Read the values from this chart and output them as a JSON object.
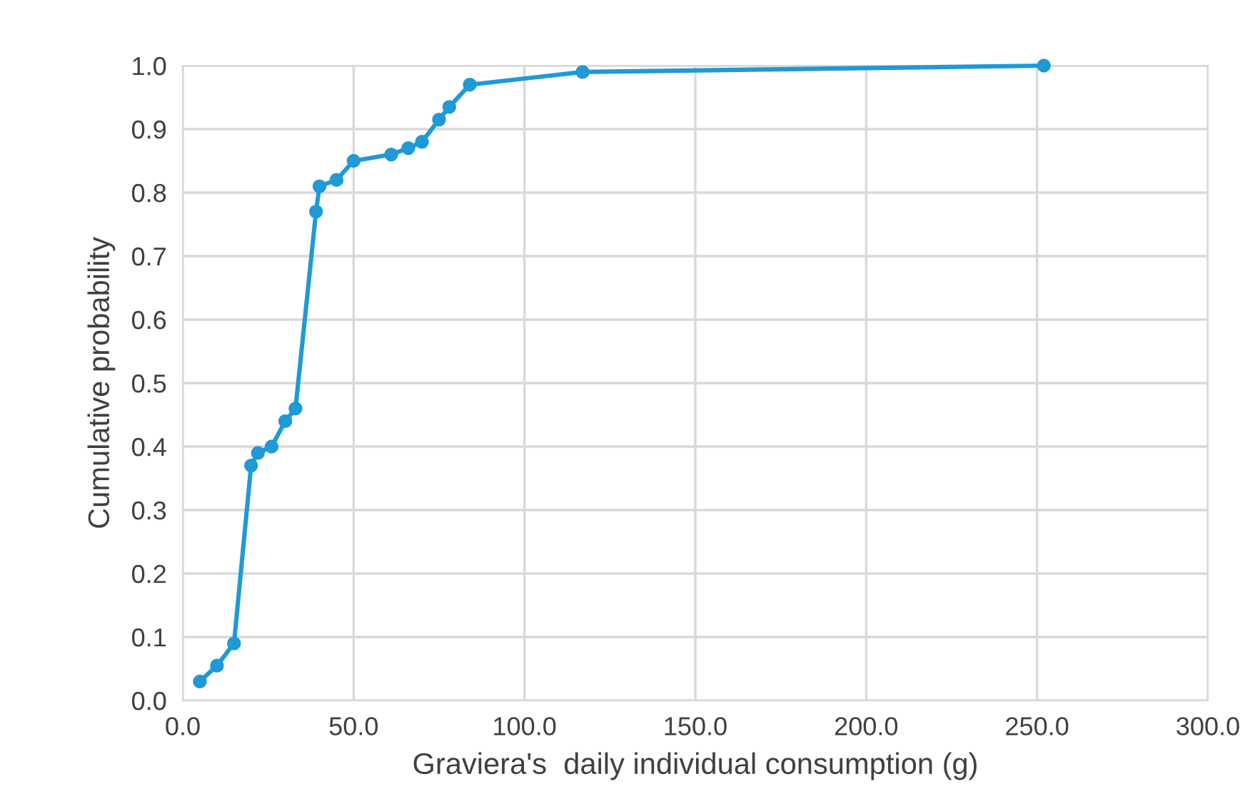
{
  "chart_data": {
    "type": "line",
    "xlabel": "Graviera's  daily individual consumption (g)",
    "ylabel": "Cumulative probability",
    "x": [
      5,
      10,
      15,
      20,
      22,
      26,
      30,
      33,
      39,
      40,
      45,
      50,
      61,
      66,
      70,
      75,
      78,
      84,
      117,
      252
    ],
    "series": [
      {
        "color": "#1f9ad6",
        "values": [
          0.03,
          0.055,
          0.09,
          0.37,
          0.39,
          0.4,
          0.44,
          0.46,
          0.77,
          0.81,
          0.82,
          0.85,
          0.86,
          0.87,
          0.88,
          0.915,
          0.935,
          0.97,
          0.99,
          1.0
        ]
      }
    ],
    "xlim": [
      0,
      300
    ],
    "xticks": [
      {
        "value": 0,
        "label": "0.0"
      },
      {
        "value": 50,
        "label": "50.0"
      },
      {
        "value": 100,
        "label": "100.0"
      },
      {
        "value": 150,
        "label": "150.0"
      },
      {
        "value": 200,
        "label": "200.0"
      },
      {
        "value": 250,
        "label": "250.0"
      },
      {
        "value": 300,
        "label": "300.0"
      }
    ],
    "ylim": [
      0,
      1
    ],
    "yticks": [
      {
        "value": 0,
        "label": "0.0"
      },
      {
        "value": 0.1,
        "label": "0.1"
      },
      {
        "value": 0.2,
        "label": "0.2"
      },
      {
        "value": 0.3,
        "label": "0.3"
      },
      {
        "value": 0.4,
        "label": "0.4"
      },
      {
        "value": 0.5,
        "label": "0.5"
      },
      {
        "value": 0.6,
        "label": "0.6"
      },
      {
        "value": 0.7,
        "label": "0.7"
      },
      {
        "value": 0.8,
        "label": "0.8"
      },
      {
        "value": 0.9,
        "label": "0.9"
      },
      {
        "value": 1,
        "label": "1.0"
      }
    ],
    "grid": true,
    "marker": "circle",
    "line_style": "solid"
  }
}
